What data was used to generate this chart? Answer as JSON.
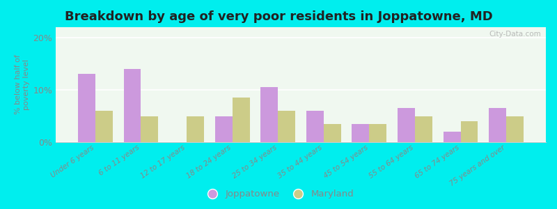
{
  "title": "Breakdown by age of very poor residents in Joppatowne, MD",
  "ylabel": "% below half of\npoverty level",
  "categories": [
    "Under 6 years",
    "6 to 11 years",
    "12 to 17 years",
    "18 to 24 years",
    "25 to 34 years",
    "35 to 44 years",
    "45 to 54 years",
    "55 to 64 years",
    "65 to 74 years",
    "75 years and over"
  ],
  "joppatowne_values": [
    13.0,
    14.0,
    0.0,
    5.0,
    10.5,
    6.0,
    3.5,
    6.5,
    2.0,
    6.5
  ],
  "maryland_values": [
    6.0,
    5.0,
    5.0,
    8.5,
    6.0,
    3.5,
    3.5,
    5.0,
    4.0,
    5.0
  ],
  "joppatowne_color": "#cc99dd",
  "maryland_color": "#cccc88",
  "background_color": "#00eeee",
  "plot_bg_color": "#eef5ee",
  "ylim": [
    0,
    22
  ],
  "yticks": [
    0,
    10,
    20
  ],
  "ytick_labels": [
    "0%",
    "10%",
    "20%"
  ],
  "title_fontsize": 13,
  "bar_width": 0.38,
  "legend_labels": [
    "Joppatowne",
    "Maryland"
  ],
  "watermark": "City-Data.com",
  "tick_color": "#888888",
  "label_color": "#888888"
}
